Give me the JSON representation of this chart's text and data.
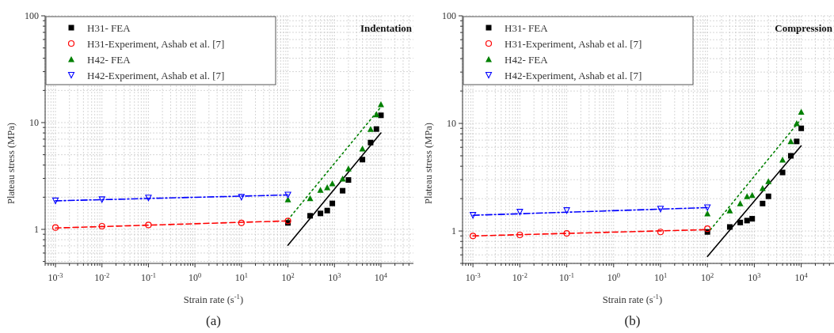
{
  "chart_data": [
    {
      "type": "scatter",
      "xlabel": "Strain rate (s$^{-1}$)",
      "ylabel": "Plateau stress (MPa)",
      "log": "xy",
      "grid": true,
      "legend": "top left",
      "annotations": [
        "Indentation",
        "(a)"
      ],
      "xlim": [
        0.0006,
        50000
      ],
      "ylim": [
        0.48,
        100
      ],
      "xticks": [
        {
          "value": 0.001,
          "label": "10$^{-3}$"
        },
        {
          "value": 0.01,
          "label": "10$^{-2}$"
        },
        {
          "value": 0.1,
          "label": "10$^{-1}$"
        },
        {
          "value": 1,
          "label": "10$^{0}$"
        },
        {
          "value": 10,
          "label": "10$^{1}$"
        },
        {
          "value": 100,
          "label": "10$^{2}$"
        },
        {
          "value": 1000,
          "label": "10$^{3}$"
        },
        {
          "value": 10000,
          "label": "10$^{4}$"
        }
      ],
      "yticks": [
        {
          "value": 0.5,
          "label": null
        },
        {
          "value": 0.6,
          "label": null
        },
        {
          "value": 0.7,
          "label": null
        },
        {
          "value": 0.8,
          "label": null
        },
        {
          "value": 0.9,
          "label": null
        },
        1,
        {
          "value": 2,
          "label": null
        },
        {
          "value": 3,
          "label": null
        },
        {
          "value": 4,
          "label": null
        },
        {
          "value": 5,
          "label": null
        },
        {
          "value": 6,
          "label": null
        },
        {
          "value": 7,
          "label": null
        },
        {
          "value": 8,
          "label": null
        },
        {
          "value": 9,
          "label": null
        },
        10,
        {
          "value": 20,
          "label": null
        },
        {
          "value": 30,
          "label": null
        },
        {
          "value": 40,
          "label": null
        },
        {
          "value": 50,
          "label": null
        },
        {
          "value": 60,
          "label": null
        },
        {
          "value": 70,
          "label": null
        },
        {
          "value": 80,
          "label": null
        },
        {
          "value": 90,
          "label": null
        },
        100
      ],
      "series": [
        {
          "name": "H31- FEA",
          "marker": "square",
          "color": "#000000",
          "x": [
            100,
            300,
            500,
            700,
            900,
            1500,
            2000,
            4000,
            6000,
            8000,
            10000
          ],
          "values": [
            1.15,
            1.34,
            1.41,
            1.5,
            1.75,
            2.3,
            2.9,
            4.5,
            6.5,
            8.7,
            11.7
          ]
        },
        {
          "name": "H31-Experiment, Ashab et al. [7]",
          "marker": "circle",
          "color": "#ff0000",
          "x": [
            0.001,
            0.01,
            0.1,
            10,
            100
          ],
          "values": [
            1.04,
            1.07,
            1.1,
            1.15,
            1.2
          ]
        },
        {
          "name": "H42- FEA",
          "marker": "triangle",
          "color": "#008000",
          "x": [
            100,
            300,
            500,
            700,
            900,
            1500,
            2000,
            4000,
            6000,
            8000,
            10000
          ],
          "values": [
            1.9,
            1.95,
            2.34,
            2.47,
            2.69,
            2.98,
            3.7,
            5.7,
            8.7,
            11.9,
            14.8
          ]
        },
        {
          "name": "H42-Experiment, Ashab et al. [7]",
          "marker": "triangle-down",
          "color": "#0000ff",
          "x": [
            0.001,
            0.01,
            0.1,
            10,
            100
          ],
          "values": [
            1.85,
            1.9,
            1.97,
            2.0,
            2.1
          ]
        },
        {
          "type": "line",
          "line_style": "solid",
          "color": "#000000",
          "x": [
            100,
            10000
          ],
          "values": [
            0.71,
            8
          ]
        },
        {
          "type": "line",
          "line_style": "dashed",
          "color": "#ff0000",
          "x": [
            0.001,
            100
          ],
          "values": [
            1.03,
            1.2
          ]
        },
        {
          "type": "line",
          "line_style": "dotted",
          "color": "#008000",
          "x": [
            100,
            10000
          ],
          "values": [
            1.23,
            14
          ]
        },
        {
          "type": "line",
          "line_style": "dashdot",
          "color": "#0000ff",
          "x": [
            0.001,
            100
          ],
          "values": [
            1.85,
            2.1
          ]
        }
      ]
    },
    {
      "type": "scatter",
      "xlabel": "Strain rate (s$^{-1}$)",
      "ylabel": "Plateau stress (MPa)",
      "log": "xy",
      "grid": true,
      "legend": "top left",
      "annotations": [
        "Compression",
        "(b)"
      ],
      "xlim": [
        0.0006,
        50000
      ],
      "ylim": [
        0.5,
        100
      ],
      "xticks": [
        {
          "value": 0.001,
          "label": "10$^{-3}$"
        },
        {
          "value": 0.01,
          "label": "10$^{-2}$"
        },
        {
          "value": 0.1,
          "label": "10$^{-1}$"
        },
        {
          "value": 1,
          "label": "10$^{0}$"
        },
        {
          "value": 10,
          "label": "10$^{1}$"
        },
        {
          "value": 100,
          "label": "10$^{2}$"
        },
        {
          "value": 1000,
          "label": "10$^{3}$"
        },
        {
          "value": 10000,
          "label": "10$^{4}$"
        }
      ],
      "yticks": [
        {
          "value": 0.5,
          "label": null
        },
        {
          "value": 0.6,
          "label": null
        },
        {
          "value": 0.7,
          "label": null
        },
        {
          "value": 0.8,
          "label": null
        },
        {
          "value": 0.9,
          "label": null
        },
        1,
        {
          "value": 2,
          "label": null
        },
        {
          "value": 3,
          "label": null
        },
        {
          "value": 4,
          "label": null
        },
        {
          "value": 5,
          "label": null
        },
        {
          "value": 6,
          "label": null
        },
        {
          "value": 7,
          "label": null
        },
        {
          "value": 8,
          "label": null
        },
        {
          "value": 9,
          "label": null
        },
        10,
        {
          "value": 20,
          "label": null
        },
        {
          "value": 30,
          "label": null
        },
        {
          "value": 40,
          "label": null
        },
        {
          "value": 50,
          "label": null
        },
        {
          "value": 60,
          "label": null
        },
        {
          "value": 70,
          "label": null
        },
        {
          "value": 80,
          "label": null
        },
        {
          "value": 90,
          "label": null
        },
        100
      ],
      "series": [
        {
          "name": "H31- FEA",
          "marker": "square",
          "color": "#000000",
          "x": [
            100,
            300,
            500,
            700,
            900,
            1500,
            2000,
            4000,
            6000,
            8000,
            10000
          ],
          "values": [
            0.98,
            1.09,
            1.2,
            1.25,
            1.3,
            1.8,
            2.1,
            3.5,
            5.0,
            6.8,
            9.0
          ]
        },
        {
          "name": "H31-Experiment, Ashab et al. [7]",
          "marker": "circle",
          "color": "#ff0000",
          "x": [
            0.001,
            0.01,
            0.1,
            10,
            100
          ],
          "values": [
            0.9,
            0.92,
            0.95,
            0.98,
            1.05
          ]
        },
        {
          "name": "H42- FEA",
          "marker": "triangle",
          "color": "#008000",
          "x": [
            100,
            300,
            500,
            700,
            900,
            1500,
            2000,
            4000,
            6000,
            8000,
            10000
          ],
          "values": [
            1.45,
            1.55,
            1.8,
            2.1,
            2.15,
            2.5,
            2.9,
            4.6,
            6.8,
            10,
            12.8
          ]
        },
        {
          "name": "H42-Experiment, Ashab et al. [7]",
          "marker": "triangle-down",
          "color": "#0000ff",
          "x": [
            0.001,
            0.01,
            0.1,
            10,
            100
          ],
          "values": [
            1.4,
            1.5,
            1.55,
            1.6,
            1.65
          ]
        },
        {
          "type": "line",
          "line_style": "solid",
          "color": "#000000",
          "x": [
            100,
            10000
          ],
          "values": [
            0.58,
            6.2
          ]
        },
        {
          "type": "line",
          "line_style": "dashed",
          "color": "#ff0000",
          "x": [
            0.001,
            100
          ],
          "values": [
            0.9,
            1.03
          ]
        },
        {
          "type": "line",
          "line_style": "dotted",
          "color": "#008000",
          "x": [
            100,
            10000
          ],
          "values": [
            0.95,
            11
          ]
        },
        {
          "type": "line",
          "line_style": "dashdot",
          "color": "#0000ff",
          "x": [
            0.001,
            100
          ],
          "values": [
            1.4,
            1.65
          ]
        }
      ]
    }
  ]
}
